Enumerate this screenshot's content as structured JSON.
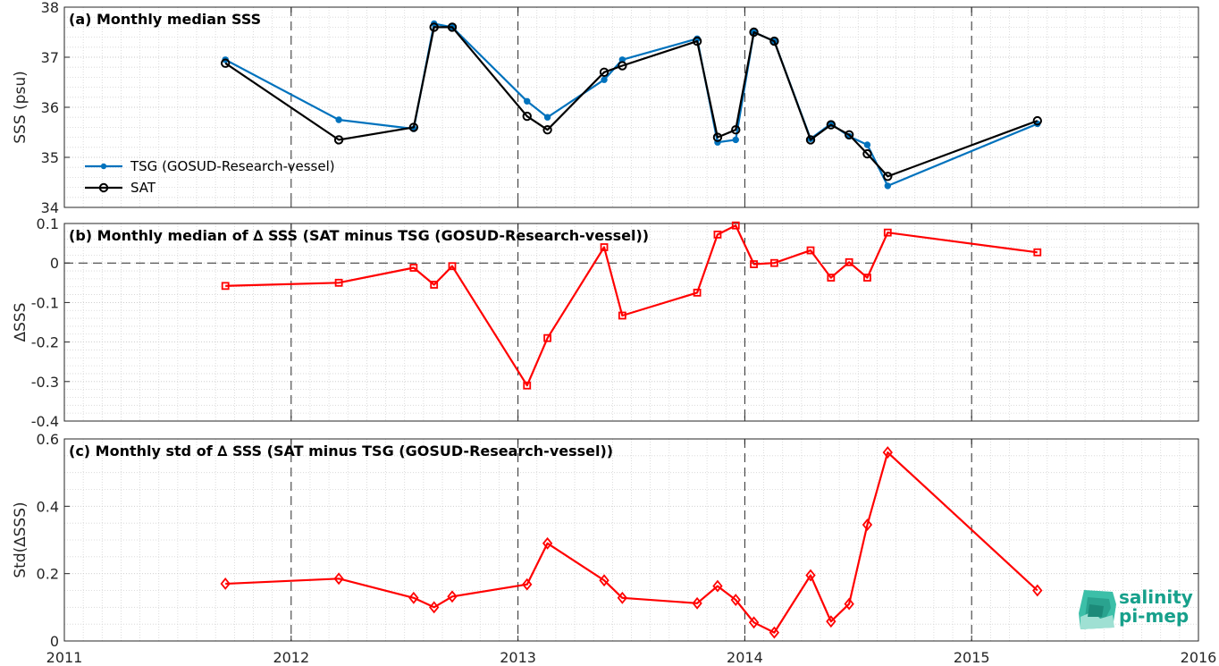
{
  "chart_data": [
    {
      "type": "line",
      "title": "(a) Monthly median SSS",
      "ylabel": "SSS (psu)",
      "xlim": [
        2011,
        2016
      ],
      "ylim": [
        34,
        38
      ],
      "yticks": [
        34,
        35,
        36,
        37,
        38
      ],
      "ytick_labels": [
        "34",
        "35",
        "36",
        "37",
        "38"
      ],
      "grid": true,
      "legend_position": "lower-left",
      "series": [
        {
          "name": "TSG (GOSUD-Research-vessel)",
          "color": "#0072bd",
          "marker": "dot",
          "x": [
            2011.71,
            2012.21,
            2012.54,
            2012.63,
            2012.71,
            2013.04,
            2013.13,
            2013.38,
            2013.46,
            2013.79,
            2013.88,
            2013.96,
            2014.04,
            2014.13,
            2014.29,
            2014.38,
            2014.46,
            2014.54,
            2014.63,
            2015.29
          ],
          "y": [
            36.95,
            35.75,
            35.57,
            37.67,
            37.6,
            36.12,
            35.8,
            36.55,
            36.95,
            37.37,
            35.3,
            35.35,
            37.5,
            37.32,
            35.37,
            35.67,
            35.42,
            35.25,
            34.43,
            35.67
          ]
        },
        {
          "name": "SAT",
          "color": "#000000",
          "marker": "circle",
          "x": [
            2011.71,
            2012.21,
            2012.54,
            2012.63,
            2012.71,
            2013.04,
            2013.13,
            2013.38,
            2013.46,
            2013.79,
            2013.88,
            2013.96,
            2014.04,
            2014.13,
            2014.29,
            2014.38,
            2014.46,
            2014.54,
            2014.63,
            2015.29
          ],
          "y": [
            36.88,
            35.35,
            35.6,
            37.6,
            37.6,
            35.82,
            35.55,
            36.7,
            36.83,
            37.32,
            35.4,
            35.55,
            37.5,
            37.32,
            35.35,
            35.65,
            35.45,
            35.07,
            34.62,
            35.73
          ]
        }
      ]
    },
    {
      "type": "line",
      "title": "(b) Monthly median of ∆ SSS (SAT minus TSG (GOSUD-Research-vessel))",
      "ylabel": "∆SSS",
      "xlim": [
        2011,
        2016
      ],
      "ylim": [
        -0.4,
        0.1
      ],
      "yticks": [
        -0.4,
        -0.3,
        -0.2,
        -0.1,
        0,
        0.1
      ],
      "ytick_labels": [
        "-0.4",
        "-0.3",
        "-0.2",
        "-0.1",
        "0",
        "0.1"
      ],
      "zero_line": true,
      "grid": true,
      "series": [
        {
          "color": "#ff0000",
          "marker": "square",
          "x": [
            2011.71,
            2012.21,
            2012.54,
            2012.63,
            2012.71,
            2013.04,
            2013.13,
            2013.38,
            2013.46,
            2013.79,
            2013.88,
            2013.96,
            2014.04,
            2014.13,
            2014.29,
            2014.38,
            2014.46,
            2014.54,
            2014.63,
            2015.29
          ],
          "y": [
            -0.058,
            -0.05,
            -0.012,
            -0.055,
            -0.008,
            -0.31,
            -0.19,
            0.04,
            -0.133,
            -0.075,
            0.072,
            0.095,
            -0.003,
            0.0,
            0.032,
            -0.037,
            0.002,
            -0.037,
            0.077,
            0.027
          ]
        }
      ]
    },
    {
      "type": "line",
      "title": "(c) Monthly std of ∆ SSS (SAT minus TSG (GOSUD-Research-vessel))",
      "ylabel": "Std(∆SSS)",
      "xlim": [
        2011,
        2016
      ],
      "ylim": [
        0,
        0.6
      ],
      "yticks": [
        0,
        0.2,
        0.4,
        0.6
      ],
      "ytick_labels": [
        "0",
        "0.2",
        "0.4",
        "0.6"
      ],
      "grid": true,
      "series": [
        {
          "color": "#ff0000",
          "marker": "diamond",
          "x": [
            2011.71,
            2012.21,
            2012.54,
            2012.63,
            2012.71,
            2013.04,
            2013.13,
            2013.38,
            2013.46,
            2013.79,
            2013.88,
            2013.96,
            2014.04,
            2014.13,
            2014.29,
            2014.38,
            2014.46,
            2014.54,
            2014.63,
            2015.29
          ],
          "y": [
            0.17,
            0.185,
            0.128,
            0.1,
            0.132,
            0.168,
            0.29,
            0.18,
            0.128,
            0.112,
            0.163,
            0.122,
            0.055,
            0.025,
            0.195,
            0.058,
            0.11,
            0.345,
            0.56,
            0.15
          ]
        }
      ]
    }
  ],
  "x_axis": {
    "ticks": [
      2011,
      2012,
      2013,
      2014,
      2015,
      2016
    ],
    "tick_labels": [
      "2011",
      "2012",
      "2013",
      "2014",
      "2015",
      "2016"
    ]
  },
  "logo": {
    "line1": "salinity",
    "line2": "pi-mep",
    "color": "#17a08b"
  }
}
